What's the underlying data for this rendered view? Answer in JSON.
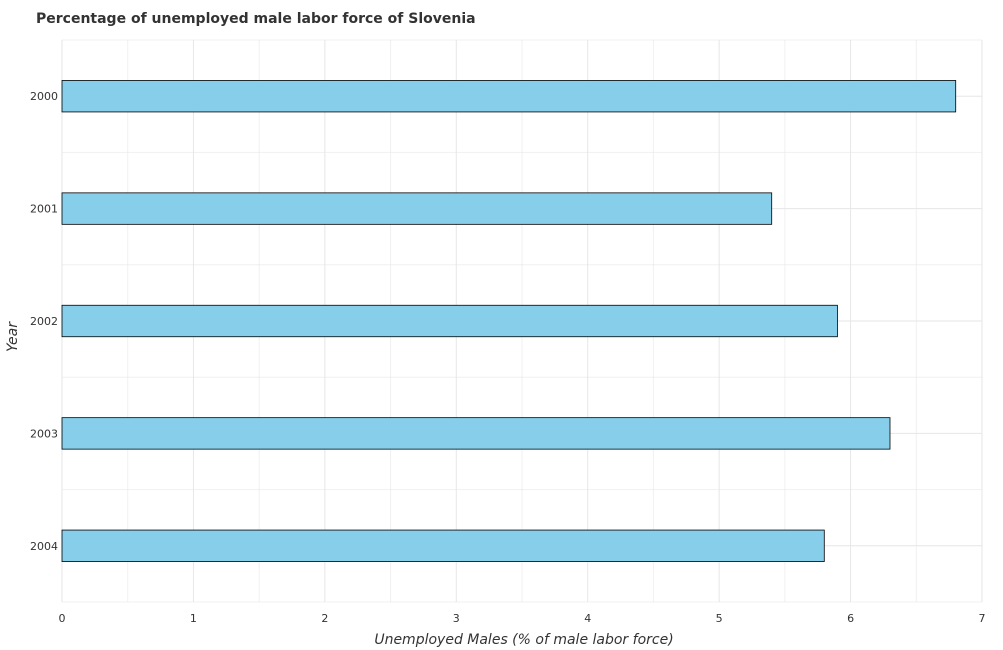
{
  "chart_data": {
    "type": "bar",
    "orientation": "horizontal",
    "title": "Percentage of unemployed male labor force of Slovenia",
    "xlabel": "Unemployed Males (% of male labor force)",
    "ylabel": "Year",
    "categories": [
      "2000",
      "2001",
      "2002",
      "2003",
      "2004"
    ],
    "series": [
      {
        "name": "Unemployed Males (% of male labor force)",
        "values": [
          6.8,
          5.4,
          5.9,
          6.3,
          5.8
        ]
      }
    ],
    "xlim": [
      0,
      7
    ],
    "xticks": [
      "0",
      "1",
      "2",
      "3",
      "4",
      "5",
      "6",
      "7"
    ],
    "grid": true,
    "bar_color": "#87ceeb"
  }
}
